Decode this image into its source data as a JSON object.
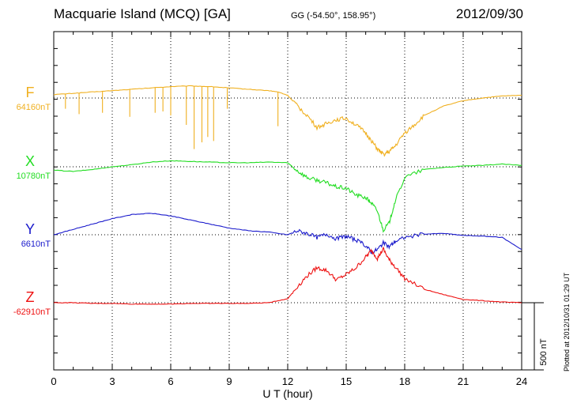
{
  "header": {
    "title": "Macquarie Island (MCQ)  [GA]",
    "coords": "GG (-54.50°, 158.95°)",
    "date": "2012/09/30",
    "plotted": "Plotted at 2012/10/31 01:29 UT"
  },
  "chart_data": {
    "type": "line",
    "xlabel": "U T (hour)",
    "xlim": [
      0,
      24
    ],
    "xticks": [
      "0",
      "3",
      "6",
      "9",
      "12",
      "15",
      "18",
      "21",
      "24"
    ],
    "grid": true,
    "scale_bar": {
      "label": "500 nT",
      "value_nT": 500
    },
    "series": [
      {
        "name": "F",
        "baseline_label": "64160nT",
        "color": "#f0b020",
        "x": [
          0,
          1,
          2,
          3,
          4,
          5,
          6,
          7,
          8,
          9,
          10,
          11,
          11.5,
          12,
          12.5,
          13,
          13.5,
          14,
          14.5,
          15,
          15.5,
          16,
          16.3,
          16.6,
          16.9,
          17.2,
          17.5,
          18,
          18.5,
          19,
          20,
          21,
          22,
          23,
          24
        ],
        "y": [
          25,
          35,
          45,
          55,
          65,
          75,
          85,
          90,
          85,
          75,
          65,
          55,
          45,
          20,
          -60,
          -130,
          -220,
          -190,
          -160,
          -150,
          -200,
          -260,
          -320,
          -380,
          -420,
          -400,
          -360,
          -260,
          -200,
          -130,
          -60,
          -20,
          0,
          15,
          20
        ],
        "spikes": [
          {
            "x": 0.6,
            "y": -80
          },
          {
            "x": 1.3,
            "y": -120
          },
          {
            "x": 2.5,
            "y": -110
          },
          {
            "x": 3.9,
            "y": -140
          },
          {
            "x": 5.2,
            "y": -110
          },
          {
            "x": 5.6,
            "y": -100
          },
          {
            "x": 6.0,
            "y": -130
          },
          {
            "x": 6.8,
            "y": -200
          },
          {
            "x": 7.2,
            "y": -380
          },
          {
            "x": 7.6,
            "y": -330
          },
          {
            "x": 7.9,
            "y": -290
          },
          {
            "x": 8.2,
            "y": -320
          },
          {
            "x": 8.9,
            "y": -80
          },
          {
            "x": 11.5,
            "y": -210
          }
        ]
      },
      {
        "name": "X",
        "baseline_label": "10780nT",
        "color": "#22dd22",
        "x": [
          0,
          1,
          2,
          3,
          4,
          5,
          6,
          7,
          8,
          9,
          10,
          11,
          12,
          12.5,
          13,
          13.5,
          14,
          14.5,
          15,
          15.5,
          16,
          16.3,
          16.6,
          16.9,
          17.2,
          17.5,
          18,
          19,
          20,
          21,
          22,
          23,
          24
        ],
        "y": [
          -25,
          -35,
          -20,
          0,
          15,
          35,
          45,
          40,
          35,
          30,
          30,
          35,
          30,
          -30,
          -80,
          -100,
          -120,
          -150,
          -160,
          -210,
          -230,
          -270,
          -330,
          -470,
          -420,
          -260,
          -80,
          -20,
          -5,
          5,
          10,
          20,
          10
        ]
      },
      {
        "name": "Y",
        "baseline_label": "6610nT",
        "color": "#1a1acc",
        "x": [
          0,
          1,
          2,
          3,
          4,
          5,
          6,
          7,
          8,
          9,
          10,
          11,
          12,
          12.5,
          13,
          13.5,
          14,
          14.5,
          15,
          15.5,
          16,
          16.3,
          16.6,
          16.9,
          17.2,
          17.5,
          18,
          19,
          20,
          21,
          22,
          23,
          24
        ],
        "y": [
          0,
          40,
          80,
          120,
          150,
          160,
          140,
          110,
          80,
          50,
          30,
          20,
          0,
          30,
          10,
          -20,
          5,
          -30,
          -10,
          -40,
          -80,
          -130,
          -110,
          -60,
          -90,
          -50,
          -20,
          5,
          10,
          -5,
          -10,
          -20,
          -110
        ]
      },
      {
        "name": "Z",
        "baseline_label": "-62910nT",
        "color": "#ee1111",
        "x": [
          0,
          1,
          2,
          3,
          4,
          5,
          6,
          7,
          8,
          9,
          10,
          11,
          12,
          12.5,
          13,
          13.5,
          14,
          14.5,
          15,
          15.5,
          16,
          16.3,
          16.6,
          16.9,
          17.2,
          17.5,
          18,
          19,
          20,
          21,
          22,
          23,
          24
        ],
        "y": [
          0,
          0,
          -5,
          -5,
          -10,
          -10,
          -10,
          -5,
          -5,
          -5,
          -5,
          0,
          30,
          120,
          200,
          260,
          240,
          170,
          210,
          260,
          340,
          390,
          330,
          400,
          320,
          270,
          180,
          100,
          60,
          25,
          15,
          5,
          0
        ]
      }
    ]
  }
}
